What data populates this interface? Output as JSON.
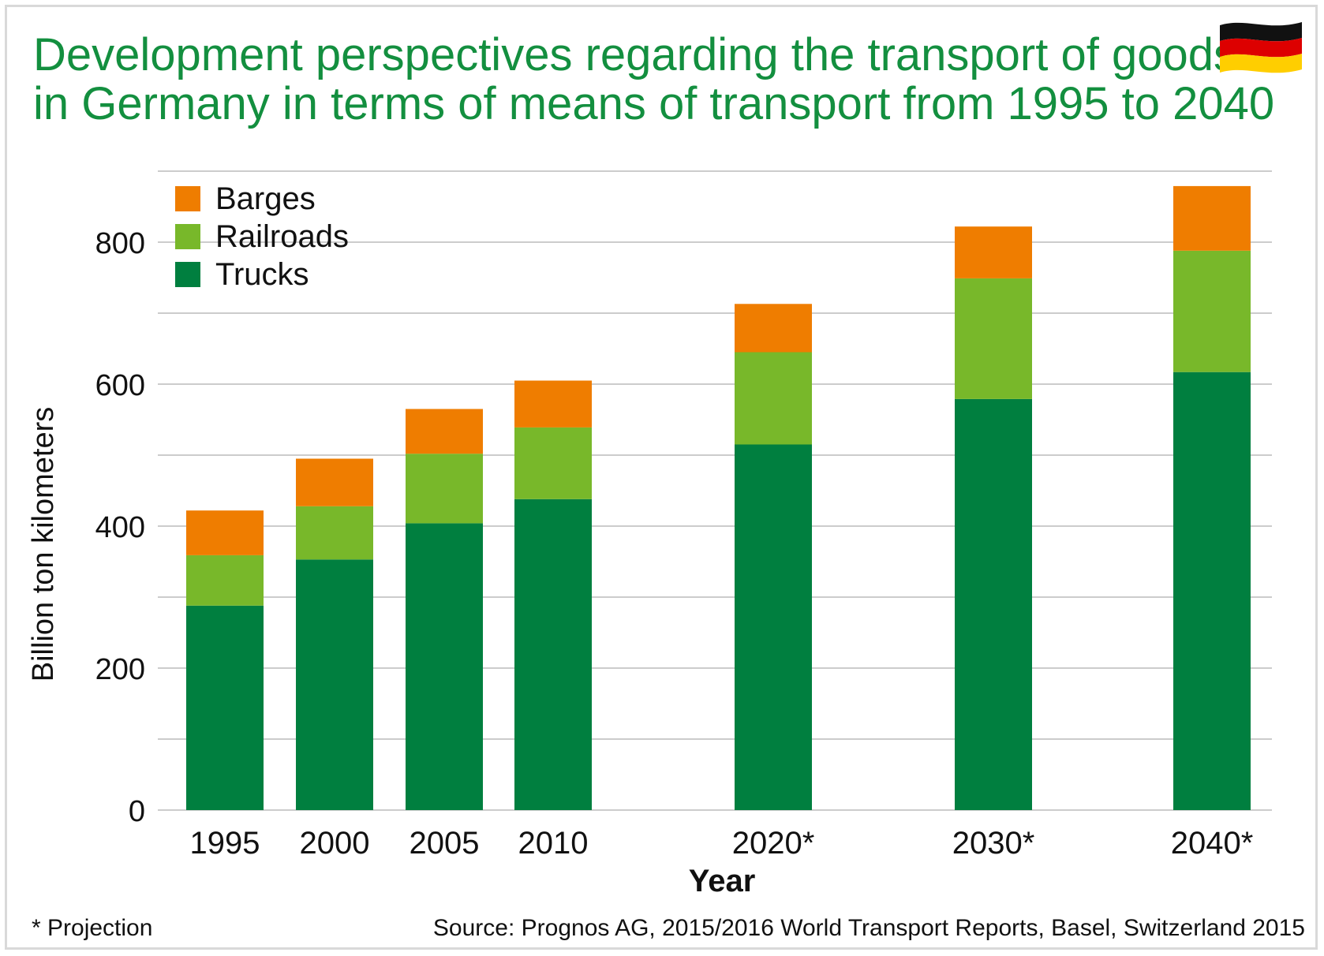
{
  "header": {
    "title_line1": "Development perspectives regarding the transport of goods",
    "title_line2": "in Germany in terms of means of transport from 1995 to 2040",
    "flag_icon": "germany-flag-icon"
  },
  "colors": {
    "trucks": "#007f3f",
    "railroads": "#78b82a",
    "barges": "#ef7d00",
    "title": "#138f3f",
    "grid": "#cccccc"
  },
  "chart_data": {
    "type": "bar",
    "stacked": true,
    "title": "Development perspectives regarding the transport of goods in Germany in terms of means of transport from 1995 to 2040",
    "xlabel": "Year",
    "ylabel": "Billion ton kilometers",
    "ylim": [
      0,
      880
    ],
    "yticks": [
      0,
      200,
      400,
      600,
      800
    ],
    "grid": true,
    "legend_position": "top-left",
    "categories": [
      "1995",
      "2000",
      "2005",
      "2010",
      "2020*",
      "2030*",
      "2040*"
    ],
    "series": [
      {
        "name": "Trucks",
        "values": [
          288,
          353,
          404,
          438,
          515,
          579,
          617
        ]
      },
      {
        "name": "Railroads",
        "values": [
          71,
          75,
          98,
          101,
          130,
          170,
          171
        ]
      },
      {
        "name": "Barges",
        "values": [
          63,
          67,
          63,
          66,
          68,
          73,
          91
        ]
      }
    ],
    "legend_order": [
      "Barges",
      "Railroads",
      "Trucks"
    ]
  },
  "footer": {
    "note": "* Projection",
    "source": "Source: Prognos AG, 2015/2016 World Transport Reports, Basel, Switzerland 2015"
  }
}
